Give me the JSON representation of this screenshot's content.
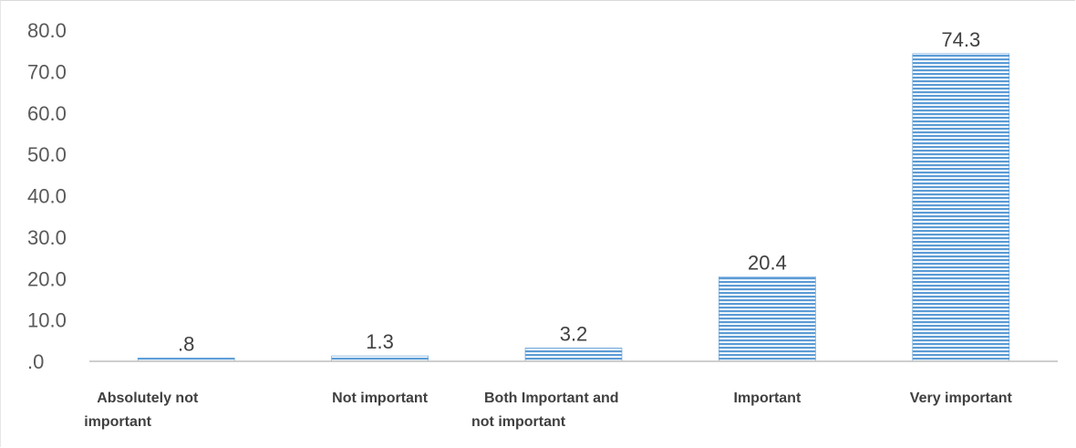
{
  "chart_data": {
    "type": "bar",
    "categories": [
      "Absolutely not important",
      "Not important",
      "Both Important and not important",
      "Important",
      "Very important"
    ],
    "category_lines": [
      [
        "Absolutely not",
        "important"
      ],
      [
        "Not important"
      ],
      [
        "Both Important and",
        "not important"
      ],
      [
        "Important"
      ],
      [
        "Very important"
      ]
    ],
    "values": [
      0.8,
      1.3,
      3.2,
      20.4,
      74.3
    ],
    "data_labels": [
      ".8",
      "1.3",
      "3.2",
      "20.4",
      "74.3"
    ],
    "y_tick_labels": [
      ".0",
      "10.0",
      "20.0",
      "30.0",
      "40.0",
      "50.0",
      "60.0",
      "70.0",
      "80.0"
    ],
    "ylim": [
      0,
      80
    ],
    "title": "",
    "xlabel": "",
    "ylabel": "",
    "grid": false,
    "bar_fill": "horizontal-stripes",
    "colors": {
      "bar": "#5b9bd5",
      "axis": "#bfbfbf",
      "text": "#595959"
    }
  }
}
